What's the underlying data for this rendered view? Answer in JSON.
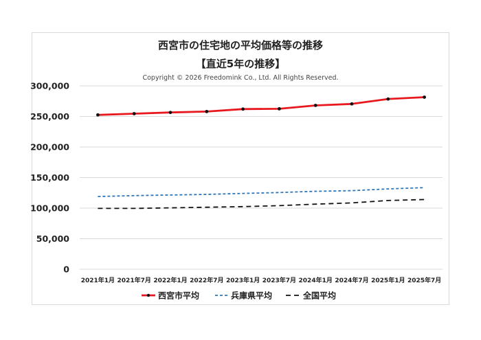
{
  "chart_title": "西宮市の住宅地の平均価格等の推移",
  "chart_subtitle": "【直近5年の推移】",
  "copyright": "Copyright © 2026 Freedomink Co., Ltd. All Rights Reserved.",
  "chart_data": {
    "type": "line",
    "title": "西宮市の住宅地の平均価格等の推移",
    "subtitle": "【直近5年の推移】",
    "xlabel": "",
    "ylabel": "",
    "ylim": [
      0,
      300000
    ],
    "yticks": [
      0,
      50000,
      100000,
      150000,
      200000,
      250000,
      300000
    ],
    "ytick_labels": [
      "0",
      "50,000",
      "100,000",
      "150,000",
      "200,000",
      "250,000",
      "300,000"
    ],
    "grid": true,
    "legend_position": "bottom",
    "categories": [
      "2021年1月",
      "2021年7月",
      "2022年1月",
      "2022年7月",
      "2023年1月",
      "2023年7月",
      "2024年1月",
      "2024年7月",
      "2025年1月",
      "2025年7月"
    ],
    "series": [
      {
        "name": "西宮市平均",
        "color": "#e8191e",
        "style": "solid-markers",
        "values": [
          252500,
          254500,
          256500,
          258000,
          262000,
          262500,
          268000,
          270500,
          278500,
          281500
        ]
      },
      {
        "name": "兵庫県平均",
        "color": "#2e75b6",
        "style": "dashed",
        "values": [
          119000,
          120500,
          121500,
          122500,
          124000,
          125500,
          127500,
          128500,
          131500,
          133500
        ]
      },
      {
        "name": "全国平均",
        "color": "#111111",
        "style": "long-dashed",
        "values": [
          99500,
          99500,
          100500,
          101500,
          102500,
          104000,
          106500,
          108500,
          112500,
          114000
        ]
      }
    ]
  }
}
